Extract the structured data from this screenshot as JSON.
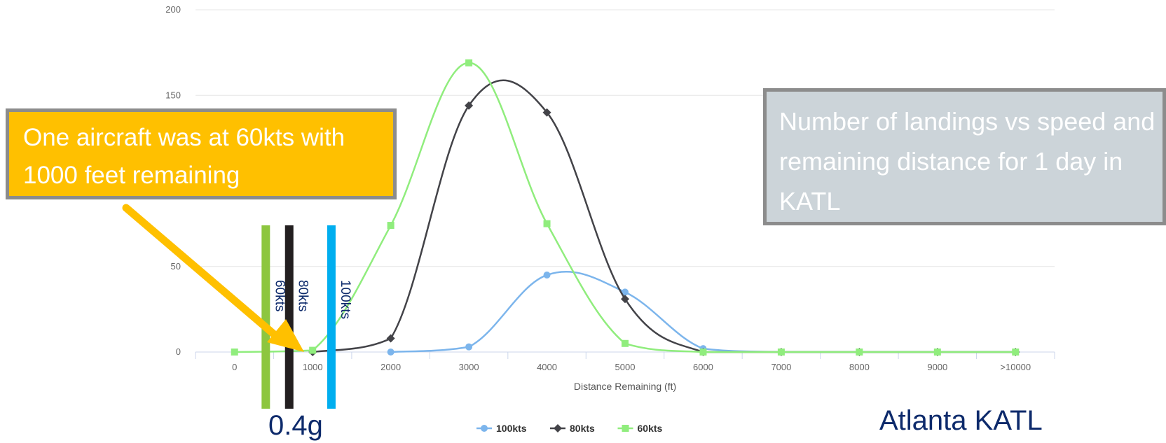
{
  "chart_data": {
    "type": "line",
    "title": "",
    "xlabel": "Distance Remaining (ft)",
    "ylabel": "",
    "categories": [
      "0",
      "1000",
      "2000",
      "3000",
      "4000",
      "5000",
      "6000",
      "7000",
      "8000",
      "9000",
      ">10000"
    ],
    "ylim": [
      0,
      200
    ],
    "yticks": [
      0,
      50,
      150,
      200
    ],
    "grid": true,
    "legend_position": "bottom-center",
    "series": [
      {
        "name": "100kts",
        "color": "#7cb5ec",
        "marker": "circle",
        "values": [
          null,
          null,
          0,
          3,
          45,
          35,
          2,
          0,
          0,
          0,
          0
        ]
      },
      {
        "name": "80kts",
        "color": "#434348",
        "marker": "diamond",
        "values": [
          null,
          0,
          8,
          144,
          140,
          31,
          0,
          0,
          0,
          0,
          0
        ]
      },
      {
        "name": "60kts",
        "color": "#90ed7d",
        "marker": "square",
        "values": [
          0,
          1,
          74,
          169,
          75,
          5,
          0,
          0,
          0,
          0,
          0
        ]
      }
    ],
    "speed_markers": [
      {
        "label": "60kts",
        "color": "#8dc63f",
        "distance_ft": 400
      },
      {
        "label": "80kts",
        "color": "#231f20",
        "distance_ft": 700
      },
      {
        "label": "100kts",
        "color": "#00aeef",
        "distance_ft": 1240
      }
    ]
  },
  "annotations": {
    "callout_text": "One aircraft was at 60kts with 1000 feet remaining",
    "info_text": "Number of landings vs speed and remaining distance for 1 day in KATL",
    "g_label": "0.4g",
    "location": "Atlanta KATL",
    "arrow_color": "#ffc000"
  }
}
